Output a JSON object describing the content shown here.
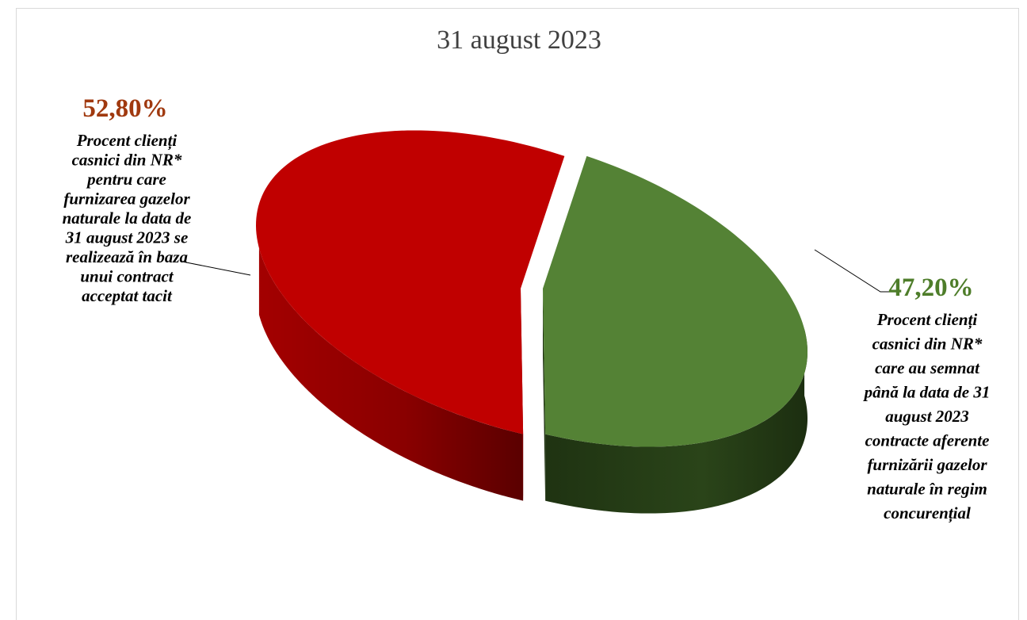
{
  "chart_data": {
    "type": "pie",
    "title": "31 august 2023",
    "slices": [
      {
        "value": 52.8,
        "value_label": "52,80%",
        "description": [
          "Procent clienți",
          "casnici din NR*",
          "pentru care",
          "furnizarea gazelor",
          "naturale la data de",
          "31 august 2023 se",
          "realizează în baza",
          "unui contract",
          "acceptat tacit"
        ],
        "color": "#c00000",
        "side_color": "#8b0000",
        "label_color": "#a0390f"
      },
      {
        "value": 47.2,
        "value_label": "47,20%",
        "description": [
          "Procent clienți",
          "casnici din NR*",
          "care au semnat",
          "până la data de 31",
          "august 2023",
          "contracte aferente",
          "furnizării gazelor",
          "naturale în regim",
          "concurențial"
        ],
        "color": "#548235",
        "side_color": "#263d18",
        "label_color": "#4e7d2a"
      }
    ],
    "style": "3d-exploded"
  }
}
